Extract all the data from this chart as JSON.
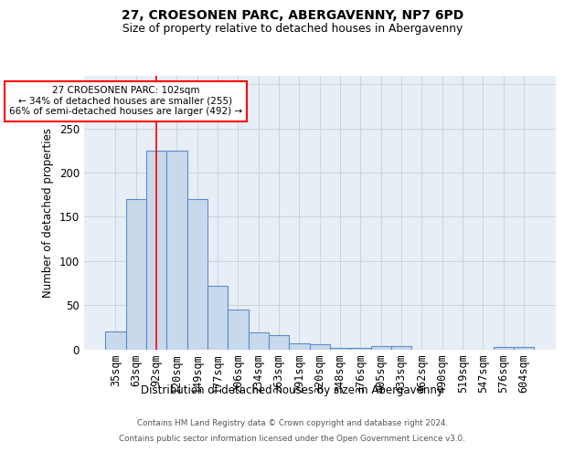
{
  "title": "27, CROESONEN PARC, ABERGAVENNY, NP7 6PD",
  "subtitle": "Size of property relative to detached houses in Abergavenny",
  "xlabel": "Distribution of detached houses by size in Abergavenny",
  "ylabel": "Number of detached properties",
  "bar_color": "#c9d9ec",
  "bar_edge_color": "#5b8dc8",
  "bar_edge_width": 0.8,
  "grid_color": "#c8d4e0",
  "bg_color": "#e8eef5",
  "categories": [
    "35sqm",
    "63sqm",
    "92sqm",
    "120sqm",
    "149sqm",
    "177sqm",
    "206sqm",
    "234sqm",
    "263sqm",
    "291sqm",
    "320sqm",
    "348sqm",
    "376sqm",
    "405sqm",
    "433sqm",
    "462sqm",
    "490sqm",
    "519sqm",
    "547sqm",
    "576sqm",
    "604sqm"
  ],
  "values": [
    20,
    170,
    225,
    225,
    170,
    72,
    45,
    19,
    16,
    7,
    6,
    2,
    2,
    4,
    4,
    0,
    0,
    0,
    0,
    3,
    3
  ],
  "property_label": "27 CROESONEN PARC: 102sqm",
  "pct_smaller": 34,
  "n_smaller": 255,
  "pct_larger_semi": 66,
  "n_larger_semi": 492,
  "red_line_index": 2,
  "ylim": [
    0,
    310
  ],
  "yticks": [
    0,
    50,
    100,
    150,
    200,
    250,
    300
  ],
  "annotation_box_color": "white",
  "annotation_box_edge_color": "red",
  "footer_line1": "Contains HM Land Registry data © Crown copyright and database right 2024.",
  "footer_line2": "Contains public sector information licensed under the Open Government Licence v3.0."
}
